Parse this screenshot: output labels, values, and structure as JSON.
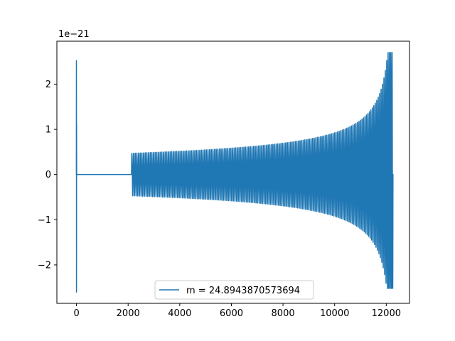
{
  "chart_data": {
    "type": "line",
    "title": "",
    "xlabel": "",
    "ylabel": "",
    "offset_label": "1e−21",
    "xlim": [
      -760,
      12900
    ],
    "ylim": [
      -2.85,
      2.95
    ],
    "xticks": [
      0,
      2000,
      4000,
      6000,
      8000,
      10000,
      12000
    ],
    "xtick_labels": [
      "0",
      "2000",
      "4000",
      "6000",
      "8000",
      "10000",
      "12000"
    ],
    "yticks": [
      -2,
      -1,
      0,
      1,
      2
    ],
    "ytick_labels": [
      "−2",
      "−1",
      "0",
      "1",
      "2"
    ],
    "grid": false,
    "legend": {
      "placement": "lower-center"
    },
    "series": [
      {
        "name": "m = 24.8943870573694",
        "color": "#1f77b4",
        "description": "oscillating waveform (units of 1e-21)",
        "segments": [
          {
            "kind": "spike",
            "x": 0,
            "ymax": 2.52,
            "ymin": -2.6
          },
          {
            "kind": "flat",
            "x_start": 0,
            "x_end": 2130,
            "y": 0
          },
          {
            "kind": "chirp",
            "x_start": 2130,
            "x_end": 12260,
            "amp_start": 0.47,
            "amp_end": 2.7,
            "amp_end_neg": -2.52,
            "cycles": 165
          }
        ]
      }
    ]
  }
}
